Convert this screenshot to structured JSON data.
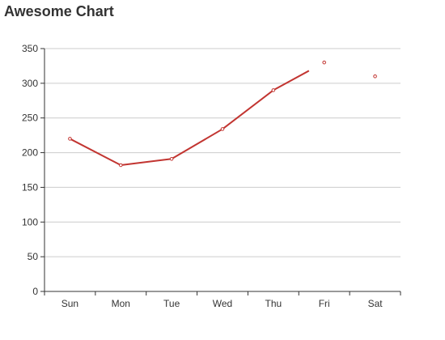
{
  "chart_data": {
    "type": "line",
    "title": "Awesome Chart",
    "categories": [
      "Sun",
      "Mon",
      "Tue",
      "Wed",
      "Thu",
      "Fri",
      "Sat"
    ],
    "series": [
      {
        "values": [
          220,
          182,
          191,
          234,
          290,
          330,
          310
        ],
        "color": "#c23531"
      }
    ],
    "line_segments_drawn": [
      [
        0,
        4
      ]
    ],
    "ylim": [
      0,
      350
    ],
    "yticks": [
      0,
      50,
      100,
      150,
      200,
      250,
      300,
      350
    ],
    "grid": true,
    "legend": "none"
  }
}
